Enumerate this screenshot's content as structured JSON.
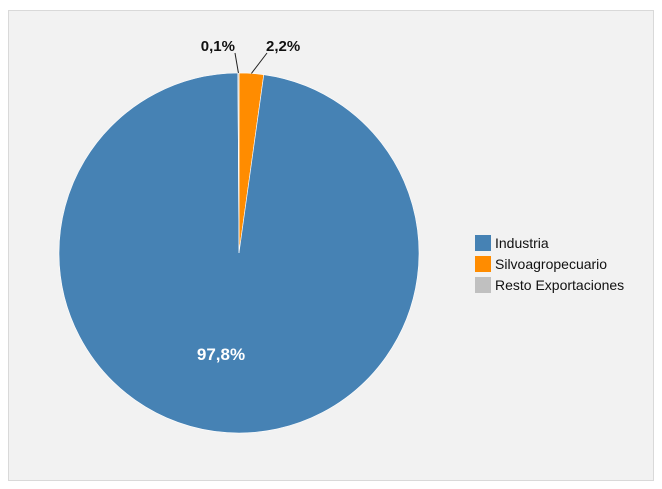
{
  "chart_data": {
    "type": "pie",
    "title": "",
    "categories": [
      "Industria",
      "Silvoagropecuario",
      "Resto Exportaciones"
    ],
    "values": [
      97.8,
      2.2,
      0.1
    ],
    "labels": [
      "97,8%",
      "2,2%",
      "0,1%"
    ],
    "colors": [
      "#4682b4",
      "#ff8c00",
      "#c0c0c0"
    ],
    "legend_position": "right"
  }
}
